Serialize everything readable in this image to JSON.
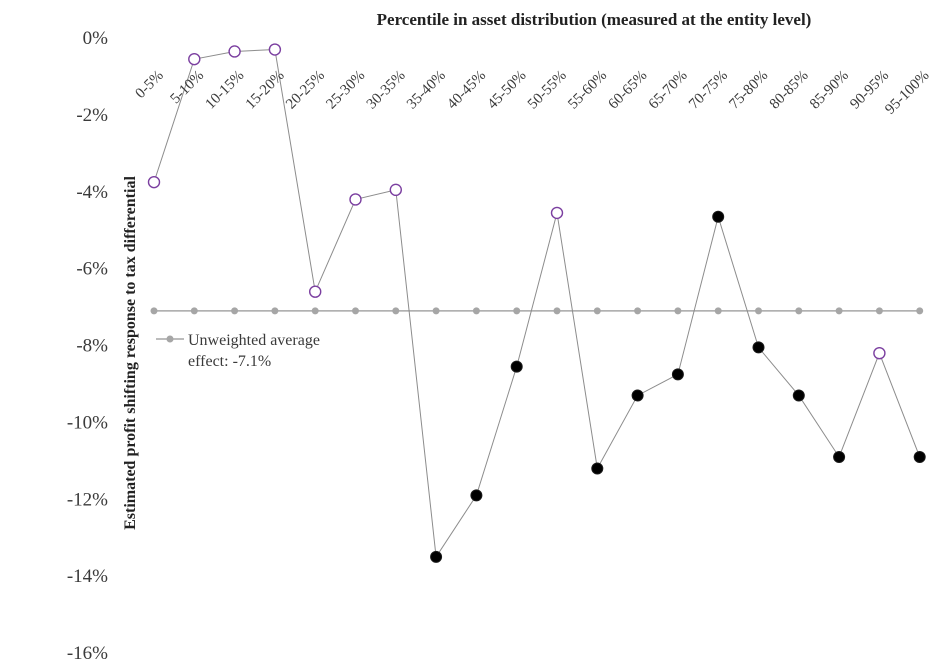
{
  "chart_data": {
    "type": "line",
    "xlabel": "Percentile in asset distribution (measured at the entity level)",
    "ylabel": "Estimated profit shifting response to tax differential",
    "categories": [
      "0-5%",
      "5-10%",
      "10-15%",
      "15-20%",
      "20-25%",
      "25-30%",
      "30-35%",
      "35-40%",
      "40-45%",
      "45-50%",
      "50-55%",
      "55-60%",
      "60-65%",
      "65-70%",
      "70-75%",
      "75-80%",
      "80-85%",
      "85-90%",
      "90-95%",
      "95-100%"
    ],
    "ylim": [
      -0.16,
      0
    ],
    "yticks": [
      0,
      -0.02,
      -0.04,
      -0.06,
      -0.08,
      -0.1,
      -0.12,
      -0.14,
      -0.16
    ],
    "ytick_labels": [
      "0%",
      "-2%",
      "-4%",
      "-6%",
      "-8%",
      "-10%",
      "-12%",
      "-14%",
      "-16%"
    ],
    "grid": false,
    "legend_position": "left",
    "series": [
      {
        "values": [
          -0.0375,
          -0.0055,
          -0.0035,
          -0.003,
          -0.066,
          -0.042,
          -0.0395,
          -0.135,
          -0.119,
          -0.0855,
          -0.0455,
          -0.112,
          -0.093,
          -0.0875,
          -0.0465,
          -0.0805,
          -0.093,
          -0.109,
          -0.082,
          -0.109
        ],
        "markers": [
          "open",
          "open",
          "open",
          "open",
          "open",
          "open",
          "open",
          "filled",
          "filled",
          "filled",
          "open",
          "filled",
          "filled",
          "filled",
          "filled",
          "filled",
          "filled",
          "filled",
          "open",
          "filled"
        ],
        "line_color": "#8c8c8c",
        "open_marker_color": "#7b3fa0",
        "filled_marker_color": "#000000"
      },
      {
        "name": "Unweighted average effect: -7.1%",
        "legend_lines": [
          "Unweighted average",
          "effect: -7.1%"
        ],
        "value": -0.071,
        "color": "#a6a6a6"
      }
    ]
  }
}
